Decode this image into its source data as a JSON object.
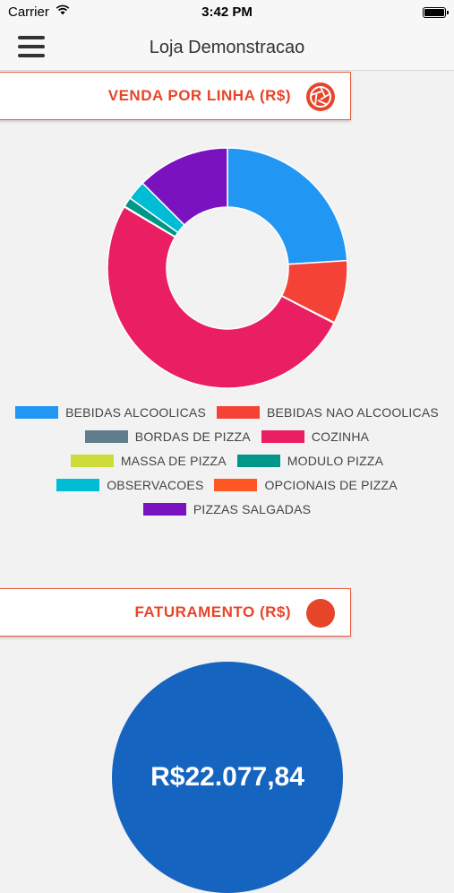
{
  "status_bar": {
    "carrier": "Carrier",
    "time": "3:42 PM"
  },
  "nav": {
    "title": "Loja Demonstracao",
    "menu_icon": "hamburger-menu-icon"
  },
  "sales_card": {
    "title": "VENDA POR LINHA (R$)",
    "icon": "aperture-icon",
    "accent": "#e6452a"
  },
  "revenue_card": {
    "title": "FATURAMENTO (R$)",
    "icon": "circle-dot-icon",
    "value": "R$22.077,84",
    "circle_color": "#1565c0"
  },
  "chart_data": {
    "type": "pie",
    "categories": [
      "BEBIDAS ALCOOLICAS",
      "BEBIDAS NAO ALCOOLICAS",
      "BORDAS DE PIZZA",
      "COZINHA",
      "MASSA DE PIZZA",
      "MODULO PIZZA",
      "OBSERVACOES",
      "OPCIONAIS DE PIZZA",
      "PIZZAS SALGADAS"
    ],
    "values": [
      24.0,
      8.5,
      0.1,
      50.9,
      0.1,
      1.3,
      2.6,
      0.0,
      12.5
    ],
    "colors": [
      "#2196f3",
      "#f44336",
      "#607d8b",
      "#e91e63",
      "#cddc39",
      "#009688",
      "#00bcd4",
      "#ff5722",
      "#7b12c0"
    ],
    "donut": true
  }
}
